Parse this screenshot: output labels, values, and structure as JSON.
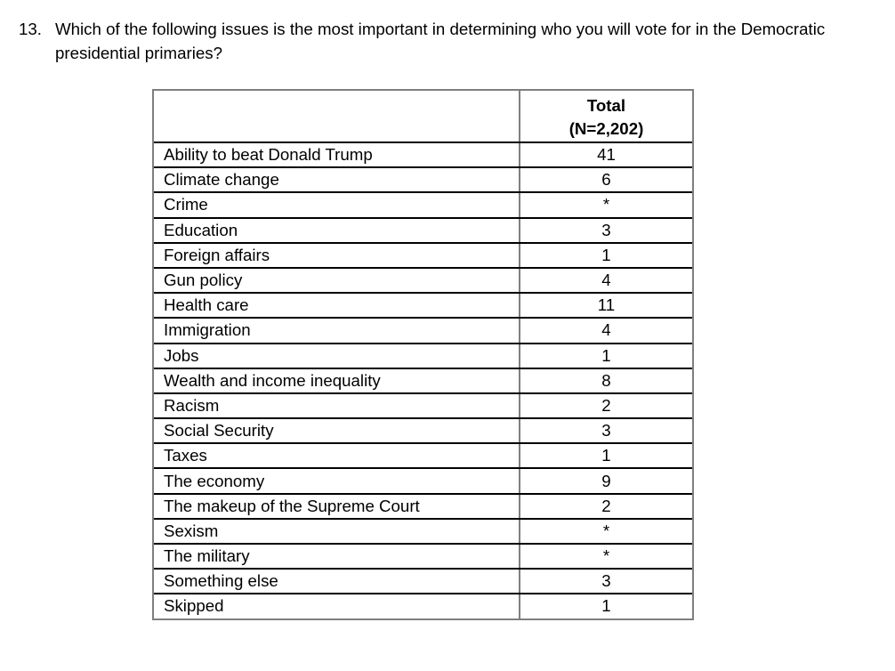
{
  "question": {
    "number": "13.",
    "text": "Which of the following issues is the most important in determining who you will vote for in the Democratic presidential primaries?"
  },
  "table": {
    "header": {
      "line1": "Total",
      "line2": "(N=2,202)"
    },
    "rows": [
      {
        "label": "Ability to beat Donald Trump",
        "value": "41"
      },
      {
        "label": "Climate change",
        "value": "6"
      },
      {
        "label": "Crime",
        "value": "*"
      },
      {
        "label": "Education",
        "value": "3"
      },
      {
        "label": "Foreign affairs",
        "value": "1"
      },
      {
        "label": "Gun policy",
        "value": "4"
      },
      {
        "label": "Health care",
        "value": "11"
      },
      {
        "label": "Immigration",
        "value": "4"
      },
      {
        "label": "Jobs",
        "value": "1"
      },
      {
        "label": "Wealth and income inequality",
        "value": "8"
      },
      {
        "label": "Racism",
        "value": "2"
      },
      {
        "label": "Social Security",
        "value": "3"
      },
      {
        "label": "Taxes",
        "value": "1"
      },
      {
        "label": "The economy",
        "value": "9"
      },
      {
        "label": "The makeup of the Supreme Court",
        "value": "2"
      },
      {
        "label": "Sexism",
        "value": "*"
      },
      {
        "label": "The military",
        "value": "*"
      },
      {
        "label": "Something else",
        "value": "3"
      },
      {
        "label": "Skipped",
        "value": "1"
      }
    ]
  },
  "colors": {
    "outer_border": "#7f7f7f",
    "row_divider": "#000000",
    "text": "#000000",
    "background": "#ffffff"
  }
}
